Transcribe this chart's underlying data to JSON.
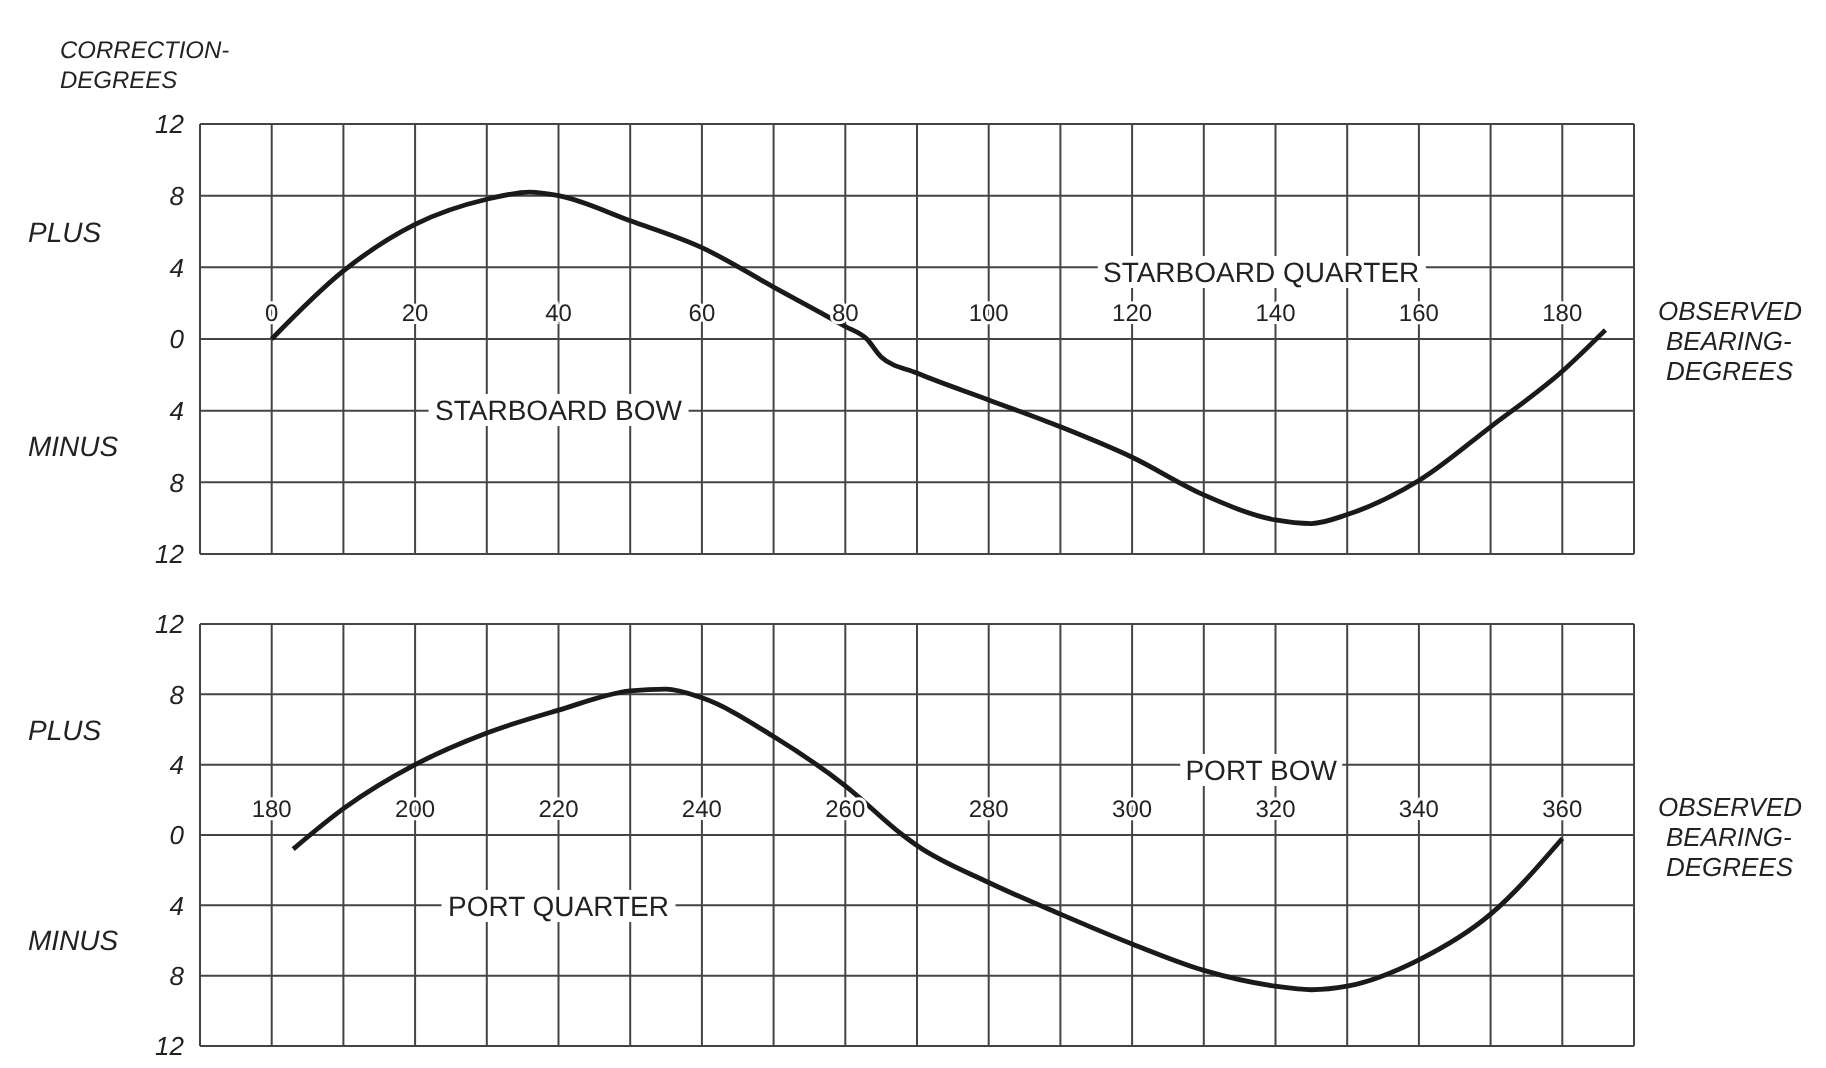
{
  "chart_data": [
    {
      "type": "line",
      "ylabel": "CORRECTION-DEGREES",
      "xlabel": "OBSERVED BEARING-DEGREES",
      "x": [
        0,
        10,
        20,
        30,
        36,
        40,
        50,
        60,
        70,
        80,
        83,
        85,
        90,
        100,
        110,
        120,
        130,
        140,
        145,
        150,
        160,
        170,
        180,
        186
      ],
      "series": [
        {
          "color": "#1a1a1a",
          "values": [
            0,
            3.8,
            6.4,
            7.8,
            8.2,
            8.0,
            6.6,
            5.1,
            2.9,
            0.7,
            0,
            -1.0,
            -1.9,
            -3.4,
            -4.9,
            -6.6,
            -8.7,
            -10.1,
            -10.3,
            -9.8,
            -7.9,
            -4.9,
            -1.8,
            0.5
          ]
        }
      ],
      "xlim": [
        -10,
        190
      ],
      "xticks": [
        {
          "value": -10,
          "label": null
        },
        0,
        {
          "value": 10,
          "label": null
        },
        20,
        {
          "value": 30,
          "label": null
        },
        40,
        {
          "value": 50,
          "label": null
        },
        60,
        {
          "value": 70,
          "label": null
        },
        80,
        {
          "value": 90,
          "label": null
        },
        100,
        {
          "value": 110,
          "label": null
        },
        120,
        {
          "value": 130,
          "label": null
        },
        140,
        {
          "value": 150,
          "label": null
        },
        160,
        {
          "value": 170,
          "label": null
        },
        180,
        {
          "value": 190,
          "label": null
        }
      ],
      "ylim": [
        -12,
        12
      ],
      "yticks": [
        {
          "value": -12,
          "label": "12"
        },
        {
          "value": -8,
          "label": "8"
        },
        {
          "value": -4,
          "label": "4"
        },
        0,
        4,
        8,
        12
      ],
      "grid": true,
      "legend": false,
      "marker": "none",
      "line_style": "solid",
      "annotations": [
        "PLUS",
        "MINUS",
        "STARBOARD BOW",
        "STARBOARD QUARTER"
      ]
    },
    {
      "type": "line",
      "xlabel": "OBSERVED BEARING-DEGREES",
      "x": [
        183,
        190,
        200,
        210,
        220,
        230,
        235,
        240,
        250,
        260,
        268,
        270,
        280,
        290,
        300,
        310,
        320,
        325,
        330,
        340,
        350,
        360
      ],
      "series": [
        {
          "color": "#1a1a1a",
          "values": [
            -0.8,
            1.5,
            4.0,
            5.8,
            7.1,
            8.2,
            8.3,
            7.8,
            5.6,
            2.8,
            0,
            -0.6,
            -2.7,
            -4.5,
            -6.2,
            -7.7,
            -8.6,
            -8.8,
            -8.6,
            -7.1,
            -4.5,
            -0.2
          ]
        }
      ],
      "xlim": [
        170,
        370
      ],
      "xticks": [
        {
          "value": 170,
          "label": null
        },
        180,
        {
          "value": 190,
          "label": null
        },
        200,
        {
          "value": 210,
          "label": null
        },
        220,
        {
          "value": 230,
          "label": null
        },
        240,
        {
          "value": 250,
          "label": null
        },
        260,
        {
          "value": 270,
          "label": null
        },
        280,
        {
          "value": 290,
          "label": null
        },
        300,
        {
          "value": 310,
          "label": null
        },
        320,
        {
          "value": 330,
          "label": null
        },
        340,
        {
          "value": 350,
          "label": null
        },
        360,
        {
          "value": 370,
          "label": null
        }
      ],
      "ylim": [
        -12,
        12
      ],
      "yticks": [
        {
          "value": -12,
          "label": "12"
        },
        {
          "value": -8,
          "label": "8"
        },
        {
          "value": -4,
          "label": "4"
        },
        0,
        4,
        8,
        12
      ],
      "grid": true,
      "legend": false,
      "marker": "none",
      "line_style": "solid",
      "annotations": [
        "PLUS",
        "MINUS",
        "PORT QUARTER",
        "PORT BOW"
      ]
    }
  ]
}
